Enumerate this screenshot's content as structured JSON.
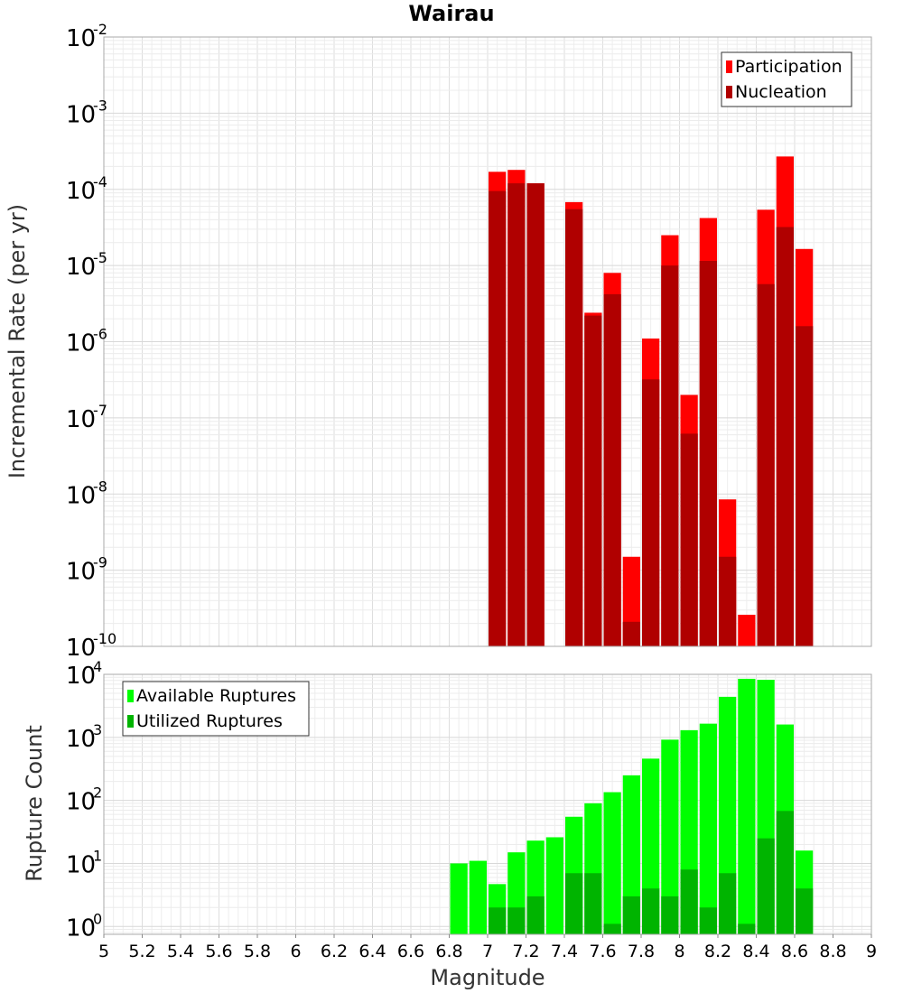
{
  "chart_data": [
    {
      "type": "bar",
      "title": "Wairau",
      "xlabel": "",
      "ylabel": "Incremental Rate (per yr)",
      "yscale": "log",
      "xlim": [
        5,
        9
      ],
      "ylim": [
        1e-10,
        0.01
      ],
      "ytick_exponents": [
        "-2",
        "-3",
        "-4",
        "-5",
        "-6",
        "-7",
        "-8",
        "-9",
        "-10"
      ],
      "ytick_base": "10",
      "grid": true,
      "legend_position": "top-right",
      "overlay": true,
      "x": [
        7.05,
        7.15,
        7.25,
        7.35,
        7.45,
        7.55,
        7.65,
        7.75,
        7.85,
        7.95,
        8.05,
        8.15,
        8.25,
        8.35,
        8.45,
        8.55,
        8.65
      ],
      "series": [
        {
          "name": "Participation",
          "color": "#ff0000",
          "values": [
            0.00017,
            0.00018,
            0.00012,
            null,
            6.8e-05,
            2.4e-06,
            8e-06,
            1.5e-09,
            1.1e-06,
            2.5e-05,
            2e-07,
            4.2e-05,
            8.5e-09,
            2.6e-10,
            5.4e-05,
            0.00027,
            1.65e-05
          ]
        },
        {
          "name": "Nucleation",
          "color": "#b00000",
          "values": [
            9.5e-05,
            0.00012,
            0.00012,
            null,
            5.5e-05,
            2.2e-06,
            4.2e-06,
            2.1e-10,
            3.2e-07,
            1e-05,
            6.2e-08,
            1.15e-05,
            1.5e-09,
            null,
            5.7e-06,
            3.2e-05,
            1.6e-06
          ]
        }
      ]
    },
    {
      "type": "bar",
      "title": "",
      "xlabel": "Magnitude",
      "ylabel": "Rupture Count",
      "yscale": "log",
      "xlim": [
        5,
        9
      ],
      "ylim": [
        0.75,
        10000
      ],
      "ytick_exponents": [
        "4",
        "3",
        "2",
        "1",
        "0"
      ],
      "ytick_base": "10",
      "xticks": [
        "5",
        "5.2",
        "5.4",
        "5.6",
        "5.8",
        "6",
        "6.2",
        "6.4",
        "6.6",
        "6.8",
        "7",
        "7.2",
        "7.4",
        "7.6",
        "7.8",
        "8",
        "8.2",
        "8.4",
        "8.6",
        "8.8",
        "9"
      ],
      "grid": true,
      "legend_position": "top-left",
      "overlay": true,
      "x": [
        6.85,
        6.95,
        7.05,
        7.15,
        7.25,
        7.35,
        7.45,
        7.55,
        7.65,
        7.75,
        7.85,
        7.95,
        8.05,
        8.15,
        8.25,
        8.35,
        8.45,
        8.55,
        8.65
      ],
      "series": [
        {
          "name": "Available Ruptures",
          "color": "#00ff00",
          "values": [
            10,
            11,
            4.7,
            15,
            23,
            26,
            55,
            90,
            135,
            250,
            460,
            920,
            1300,
            1650,
            4400,
            8500,
            8200,
            1600,
            16
          ]
        },
        {
          "name": "Utilized Ruptures",
          "color": "#00b400",
          "values": [
            null,
            null,
            2,
            2,
            3,
            null,
            7,
            7,
            1.1,
            3,
            4,
            3,
            8,
            2,
            7,
            1.1,
            25,
            68,
            4
          ]
        }
      ]
    }
  ]
}
